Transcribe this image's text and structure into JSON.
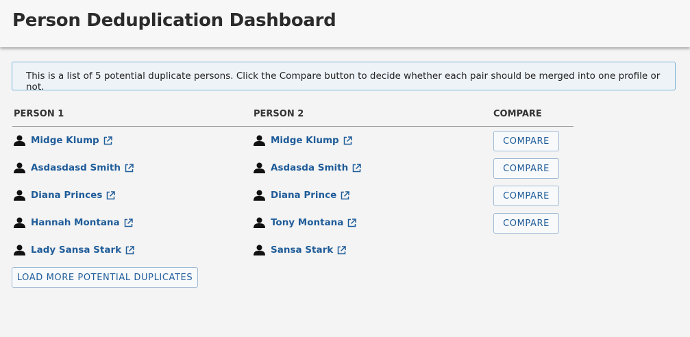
{
  "header": {
    "title": "Person Deduplication Dashboard"
  },
  "notice": "This is a list of 5 potential duplicate persons. Click the Compare button to decide whether each pair should be merged into one profile or not.",
  "table": {
    "columns": [
      "PERSON 1",
      "PERSON 2",
      "COMPARE"
    ],
    "rows": [
      {
        "person1": "Midge Klump",
        "person2": "Midge Klump",
        "action": "COMPARE"
      },
      {
        "person1": "Asdasdasd Smith",
        "person2": "Asdasda Smith",
        "action": "COMPARE"
      },
      {
        "person1": "Diana Princes",
        "person2": "Diana Prince",
        "action": "COMPARE"
      },
      {
        "person1": "Hannah Montana",
        "person2": "Tony Montana",
        "action": "COMPARE"
      },
      {
        "person1": "Lady Sansa Stark",
        "person2": "Sansa Stark"
      }
    ]
  },
  "load_more": "LOAD MORE POTENTIAL DUPLICATES"
}
